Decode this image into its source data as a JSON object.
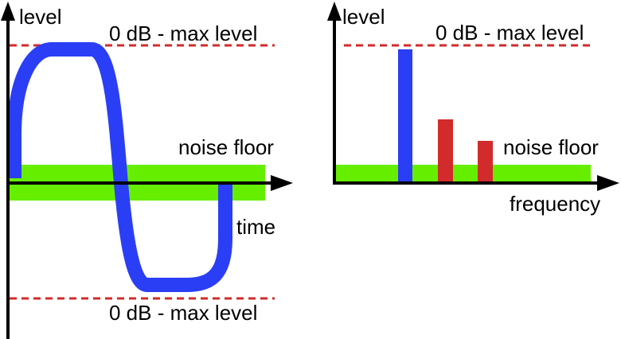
{
  "left_panel": {
    "y_axis_label": "level",
    "top_limit_label": "0 dB - max level",
    "noise_label": "noise floor",
    "x_axis_label": "time",
    "bottom_limit_label": "0 dB - max level"
  },
  "right_panel": {
    "y_axis_label": "level",
    "top_limit_label": "0 dB - max level",
    "noise_label": "noise floor",
    "x_axis_label": "frequency"
  }
}
